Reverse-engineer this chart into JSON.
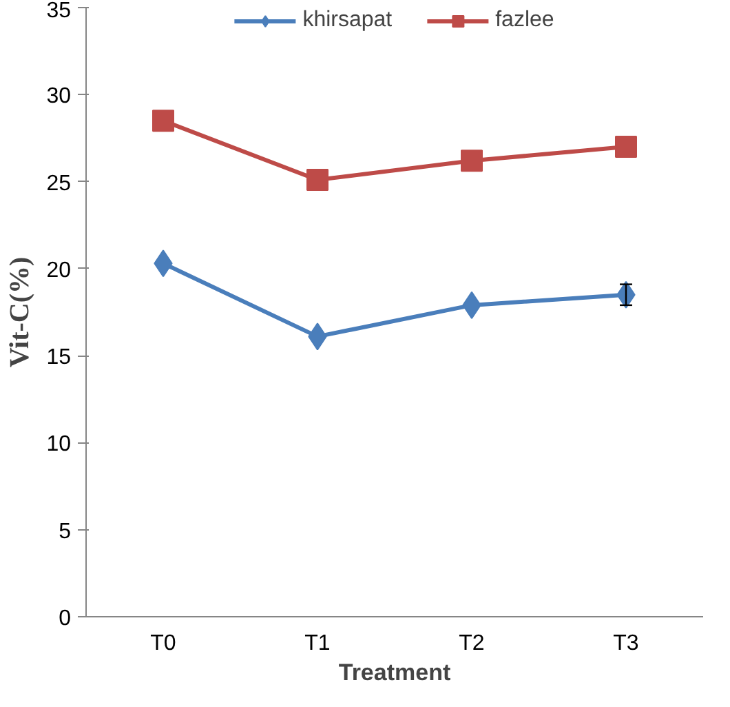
{
  "chart_data": {
    "type": "line",
    "xlabel": "Treatment",
    "ylabel": "Vit-C(%)",
    "categories": [
      "T0",
      "T1",
      "T2",
      "T3"
    ],
    "series": [
      {
        "name": "khirsapat",
        "color": "#4a7ebb",
        "values": [
          20.3,
          16.1,
          17.9,
          18.5
        ],
        "marker": "diamond",
        "errors": [
          null,
          null,
          null,
          0.6
        ]
      },
      {
        "name": "fazlee",
        "color": "#be4b48",
        "values": [
          28.5,
          25.1,
          26.2,
          27.0
        ],
        "marker": "square"
      }
    ],
    "ylim": [
      0,
      35
    ],
    "yticks": [
      0,
      5,
      10,
      15,
      20,
      25,
      30,
      35
    ],
    "grid": false,
    "legend": "top"
  }
}
